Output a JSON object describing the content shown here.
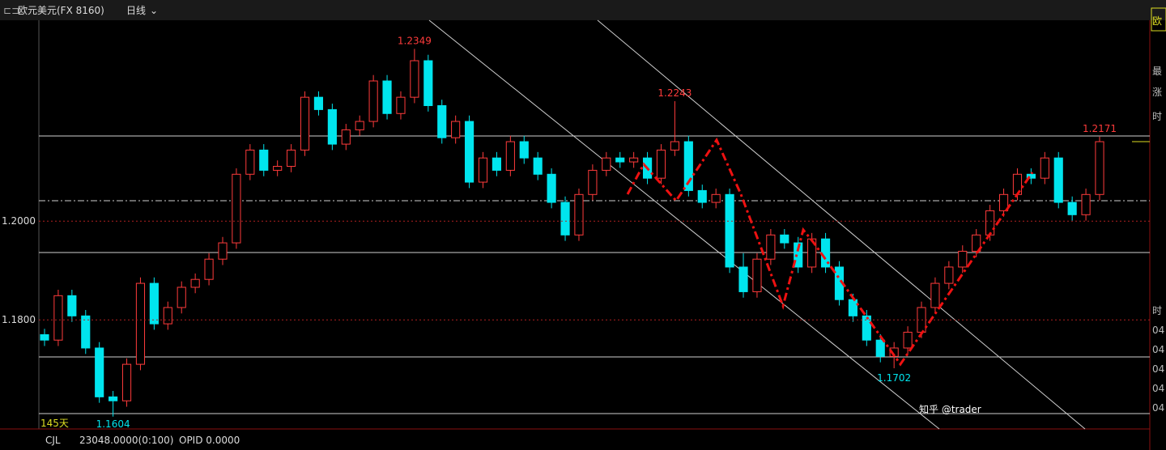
{
  "header": {
    "symbol": "欧元美元(FX 8160)",
    "period": "日线"
  },
  "footer": {
    "count": "145天",
    "indicator": "CJL",
    "volume": "23048.0000(0:100)",
    "opid": "OPID 0.0000"
  },
  "watermark": "知乎 @trader",
  "side_panel": [
    "欧",
    "最",
    "涨",
    "时",
    "时",
    "04",
    "04",
    "04",
    "04",
    "04"
  ],
  "chart_data": {
    "type": "candlestick",
    "up_color": "#ff3b3b",
    "down_color": "#00e5ee",
    "open": [
      1.177,
      1.1759,
      1.1849,
      1.1808,
      1.1743,
      1.1644,
      1.1636,
      1.171,
      1.1874,
      1.1792,
      1.1825,
      1.1866,
      1.1882,
      1.1923,
      1.1956,
      1.2095,
      1.2144,
      1.2103,
      1.2111,
      1.2144,
      1.2251,
      1.2226,
      1.2156,
      1.2185,
      1.2202,
      1.2284,
      1.2218,
      1.2251,
      1.2325,
      1.2234,
      1.2169,
      1.2202,
      1.2079,
      1.2128,
      1.2103,
      1.2161,
      1.2128,
      1.2095,
      1.2038,
      1.1972,
      1.2054,
      1.2103,
      1.2128,
      1.212,
      1.2128,
      1.2087,
      1.2144,
      1.2161,
      1.2062,
      1.2038,
      1.2054,
      1.1907,
      1.1857,
      1.1923,
      1.1972,
      1.1956,
      1.1907,
      1.1964,
      1.1907,
      1.1841,
      1.1808,
      1.1759,
      1.1726,
      1.1743,
      1.1775,
      1.1825,
      1.1874,
      1.1907,
      1.1939,
      1.1972,
      1.2021,
      1.2054,
      1.2095,
      1.2087,
      1.2128,
      1.2038,
      1.2013,
      1.2054
    ],
    "high": [
      1.1782,
      1.1861,
      1.1861,
      1.182,
      1.1755,
      1.1656,
      1.1722,
      1.1886,
      1.1886,
      1.1837,
      1.1878,
      1.1894,
      1.1935,
      1.1968,
      1.2107,
      1.2156,
      1.2156,
      1.2123,
      1.2156,
      1.2263,
      1.2263,
      1.2238,
      1.2197,
      1.2214,
      1.2296,
      1.2296,
      1.2263,
      1.2349,
      1.2337,
      1.2246,
      1.2214,
      1.2214,
      1.214,
      1.214,
      1.2173,
      1.2173,
      1.214,
      1.2107,
      1.205,
      1.2066,
      1.2115,
      1.214,
      1.214,
      1.214,
      1.214,
      1.2156,
      1.2243,
      1.2173,
      1.2074,
      1.2066,
      1.2066,
      1.1935,
      1.1935,
      1.1984,
      1.1984,
      1.1968,
      1.1976,
      1.1976,
      1.1919,
      1.1853,
      1.182,
      1.1771,
      1.1755,
      1.1787,
      1.1837,
      1.1886,
      1.1919,
      1.1951,
      1.1984,
      1.2033,
      1.2066,
      1.2107,
      1.2107,
      1.214,
      1.214,
      1.205,
      1.2066,
      1.2171
    ],
    "low": [
      1.1747,
      1.1747,
      1.1796,
      1.1731,
      1.1632,
      1.1604,
      1.1624,
      1.1698,
      1.178,
      1.178,
      1.1813,
      1.1854,
      1.187,
      1.1911,
      1.1944,
      1.2083,
      1.2091,
      1.2091,
      1.2099,
      1.2132,
      1.2214,
      1.2144,
      1.2144,
      1.2173,
      1.219,
      1.2206,
      1.2206,
      1.2239,
      1.2222,
      1.2157,
      1.2157,
      1.2067,
      1.2067,
      1.2091,
      1.2091,
      1.2116,
      1.2083,
      1.2026,
      1.196,
      1.196,
      1.2042,
      1.2091,
      1.2108,
      1.2108,
      1.2075,
      1.2075,
      1.2132,
      1.205,
      1.2026,
      1.2026,
      1.1895,
      1.1845,
      1.1845,
      1.1911,
      1.1944,
      1.1895,
      1.1895,
      1.1895,
      1.1829,
      1.1796,
      1.1747,
      1.1714,
      1.1702,
      1.1731,
      1.1763,
      1.1813,
      1.1862,
      1.1895,
      1.1927,
      1.196,
      1.2009,
      1.2042,
      1.2075,
      1.2075,
      1.2026,
      1.2001,
      1.2001,
      1.2042
    ],
    "close": [
      1.1759,
      1.1849,
      1.1808,
      1.1743,
      1.1644,
      1.1636,
      1.171,
      1.1874,
      1.1792,
      1.1825,
      1.1866,
      1.1882,
      1.1923,
      1.1956,
      1.2095,
      1.2144,
      1.2103,
      1.2111,
      1.2144,
      1.2251,
      1.2226,
      1.2156,
      1.2185,
      1.2202,
      1.2284,
      1.2218,
      1.2251,
      1.2325,
      1.2234,
      1.2169,
      1.2202,
      1.2079,
      1.2128,
      1.2103,
      1.2161,
      1.2128,
      1.2095,
      1.2038,
      1.1972,
      1.2054,
      1.2103,
      1.2128,
      1.212,
      1.2128,
      1.2087,
      1.2144,
      1.2161,
      1.2062,
      1.2038,
      1.2054,
      1.1907,
      1.1857,
      1.1923,
      1.1972,
      1.1956,
      1.1907,
      1.1964,
      1.1907,
      1.1841,
      1.1808,
      1.1759,
      1.1726,
      1.1743,
      1.1775,
      1.1825,
      1.1874,
      1.1907,
      1.1939,
      1.1972,
      1.2021,
      1.2054,
      1.2095,
      1.2087,
      1.2128,
      1.2038,
      1.2013,
      1.2054,
      1.2161
    ],
    "ylim": [
      1.1579,
      1.2407
    ],
    "yticks": [
      {
        "value": 1.18,
        "label": "1.1800"
      },
      {
        "value": 1.2,
        "label": "1.2000"
      }
    ],
    "grid": true
  }
}
